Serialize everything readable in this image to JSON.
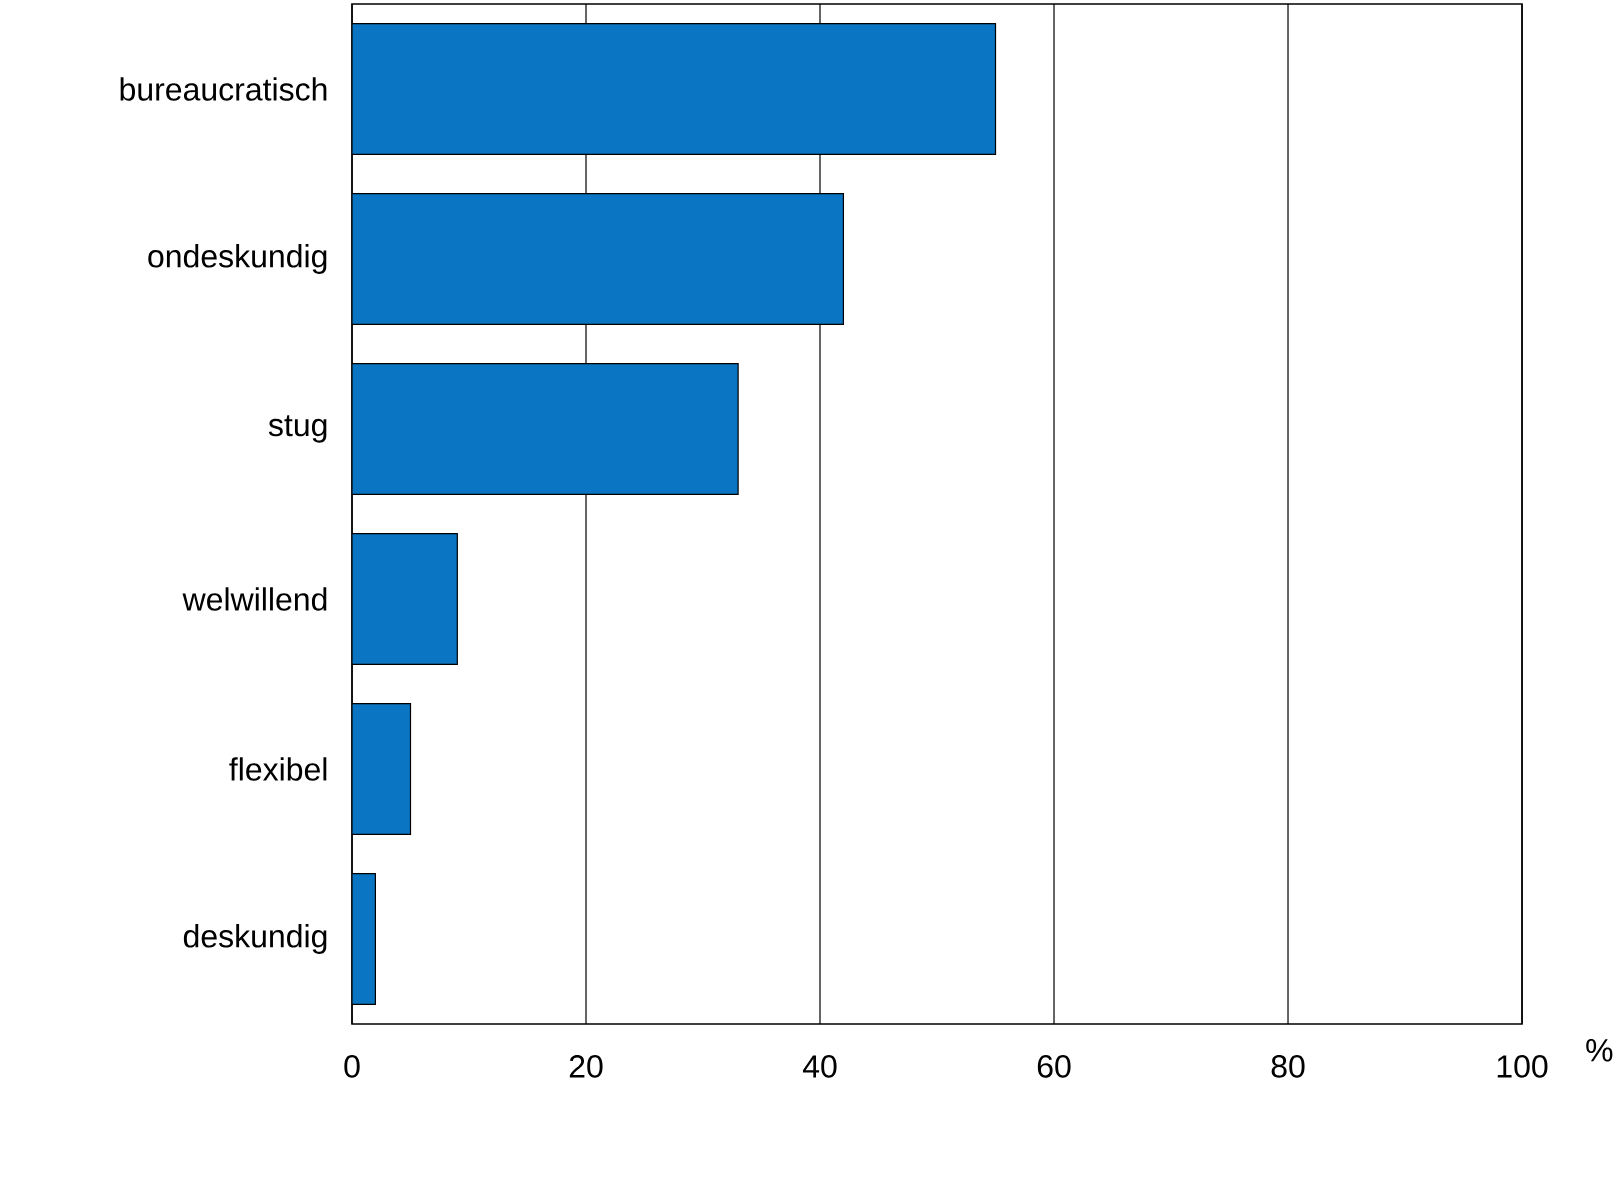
{
  "chart_data": {
    "type": "bar",
    "orientation": "horizontal",
    "xlabel": "%",
    "categories": [
      "bureaucratisch",
      "ondeskundig",
      "stug",
      "welwillend",
      "flexibel",
      "deskundig"
    ],
    "values": [
      55,
      42,
      33,
      9,
      5,
      2
    ],
    "color": "#0a75c2",
    "xlim": [
      0,
      100
    ],
    "xticks": [
      0,
      20,
      40,
      60,
      80,
      100
    ],
    "grid": "x"
  }
}
